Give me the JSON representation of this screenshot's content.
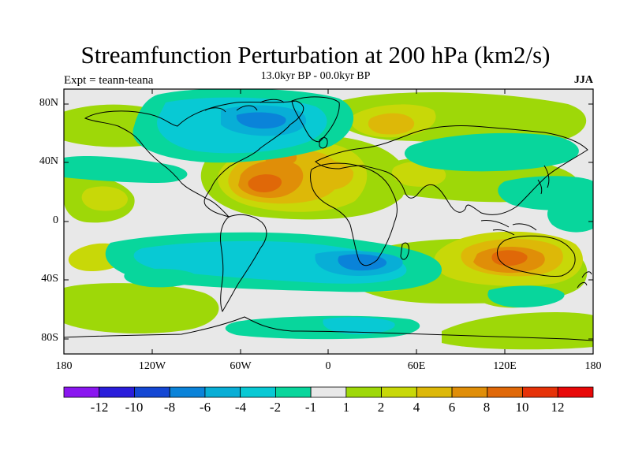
{
  "title": "Streamfunction Perturbation at 200 hPa (km2/s)",
  "subtitle": "13.0kyr BP - 00.0kyr BP",
  "left_label": "Expt = teann-teana",
  "right_label": "JJA",
  "map": {
    "lat_ticks": [
      "80N",
      "40N",
      "0",
      "40S",
      "80S"
    ],
    "lon_ticks": [
      "180",
      "120W",
      "60W",
      "0",
      "60E",
      "120E",
      "180"
    ]
  },
  "colorbar": {
    "labels": [
      "-12",
      "-10",
      "-8",
      "-6",
      "-4",
      "-2",
      "-1",
      "1",
      "2",
      "4",
      "6",
      "8",
      "10",
      "12"
    ],
    "colors": [
      "#8a16f0",
      "#2a1ddb",
      "#1447d4",
      "#0a83d9",
      "#08aed6",
      "#08c9d4",
      "#08d69c",
      "#e8e8e8",
      "#9ed808",
      "#c8d808",
      "#ddb808",
      "#e08e08",
      "#e06808",
      "#e63208",
      "#e80808"
    ]
  }
}
